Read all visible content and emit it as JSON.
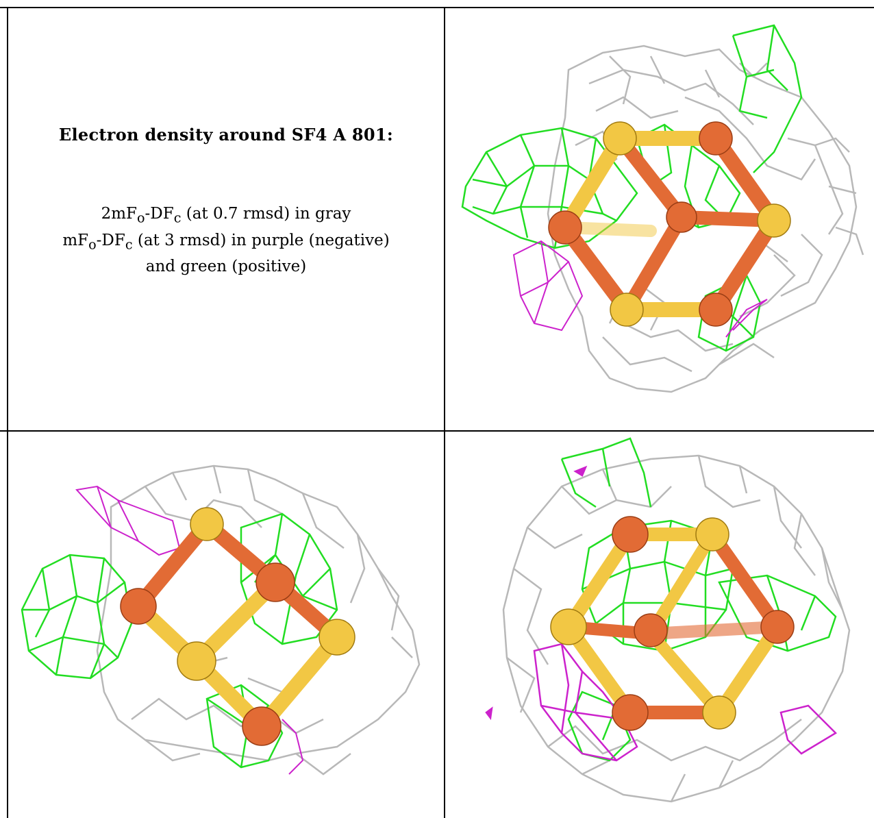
{
  "title": "Electron density around SF4 A 801:",
  "legend": {
    "line1": "2mFo-DFc (at 0.7 rmsd) in gray",
    "line2": "mFo-DFc (at 3 rmsd) in purple (negative)",
    "line3": "and green (positive)"
  },
  "colors": {
    "map_2fofc": "#b8b8b8",
    "map_fofc_positive": "#22dd22",
    "map_fofc_negative": "#cc22cc",
    "sulfur": "#f2c744",
    "iron": "#e26b35",
    "border": "#000000"
  },
  "panels": [
    {
      "name": "view-1",
      "description_icon": "molecule-view"
    },
    {
      "name": "view-2",
      "description_icon": "molecule-view"
    },
    {
      "name": "view-3",
      "description_icon": "molecule-view"
    }
  ]
}
